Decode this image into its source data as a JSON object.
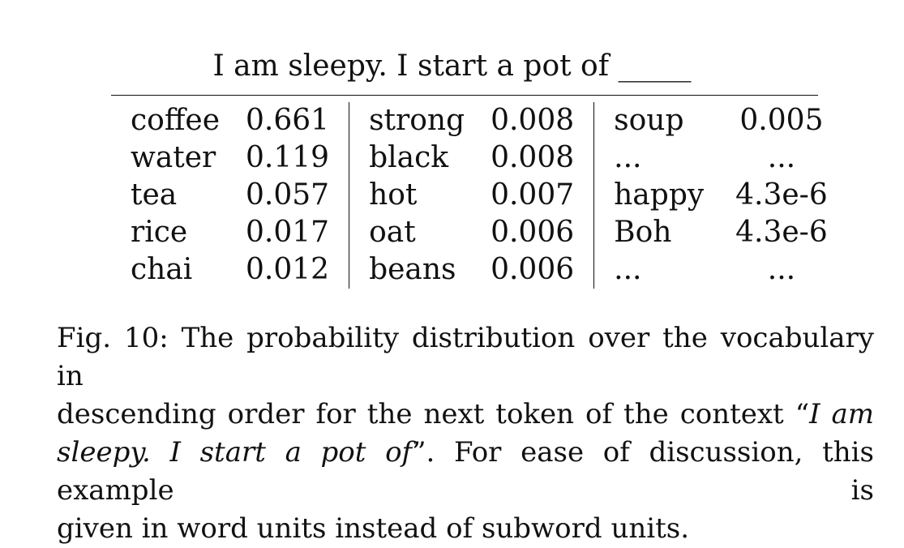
{
  "context": "I am sleepy. I start a pot of _____",
  "table": {
    "rows": [
      [
        {
          "token": "coffee",
          "prob": "0.661"
        },
        {
          "token": "strong",
          "prob": "0.008"
        },
        {
          "token": "soup",
          "prob": "0.005"
        }
      ],
      [
        {
          "token": "water",
          "prob": "0.119"
        },
        {
          "token": "black",
          "prob": "0.008"
        },
        {
          "token": "...",
          "prob": "..."
        }
      ],
      [
        {
          "token": "tea",
          "prob": "0.057"
        },
        {
          "token": "hot",
          "prob": "0.007"
        },
        {
          "token": "happy",
          "prob": "4.3e-6"
        }
      ],
      [
        {
          "token": "rice",
          "prob": "0.017"
        },
        {
          "token": "oat",
          "prob": "0.006"
        },
        {
          "token": "Boh",
          "prob": "4.3e-6"
        }
      ],
      [
        {
          "token": "chai",
          "prob": "0.012"
        },
        {
          "token": "beans",
          "prob": "0.006"
        },
        {
          "token": "...",
          "prob": "..."
        }
      ]
    ]
  },
  "caption": {
    "line1": "Fig. 10: The probability distribution over the vocabulary in",
    "line2_a": "descending order for the next token of the context “",
    "line2_italic": "I am",
    "line3_italic": "sleepy. I start a pot of",
    "line3_b": "”. For ease of discussion, this example is",
    "line4": "given in word units instead of subword units."
  }
}
